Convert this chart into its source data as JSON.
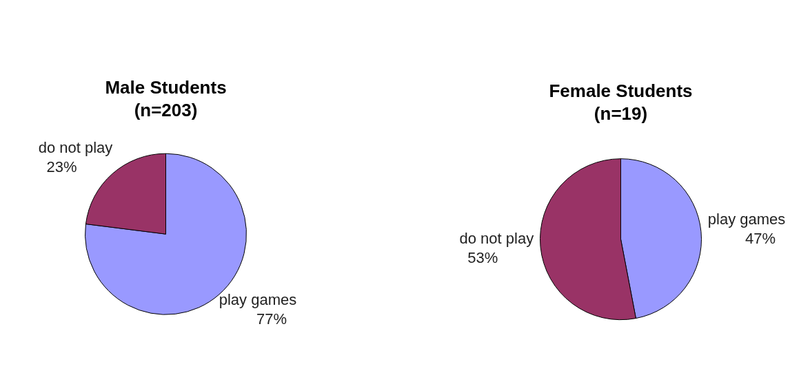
{
  "chart_data": [
    {
      "type": "pie",
      "title": "Male Students",
      "subtitle": "(n=203)",
      "categories": [
        "play games",
        "do not play"
      ],
      "values": [
        77,
        23
      ],
      "colors": [
        "#9999ff",
        "#993366"
      ],
      "value_labels": [
        "77%",
        "23%"
      ],
      "legend": false
    },
    {
      "type": "pie",
      "title": "Female Students",
      "subtitle": "(n=19)",
      "categories": [
        "play games",
        "do not play"
      ],
      "values": [
        47,
        53
      ],
      "colors": [
        "#9999ff",
        "#993366"
      ],
      "value_labels": [
        "47%",
        "53%"
      ],
      "legend": false
    }
  ]
}
